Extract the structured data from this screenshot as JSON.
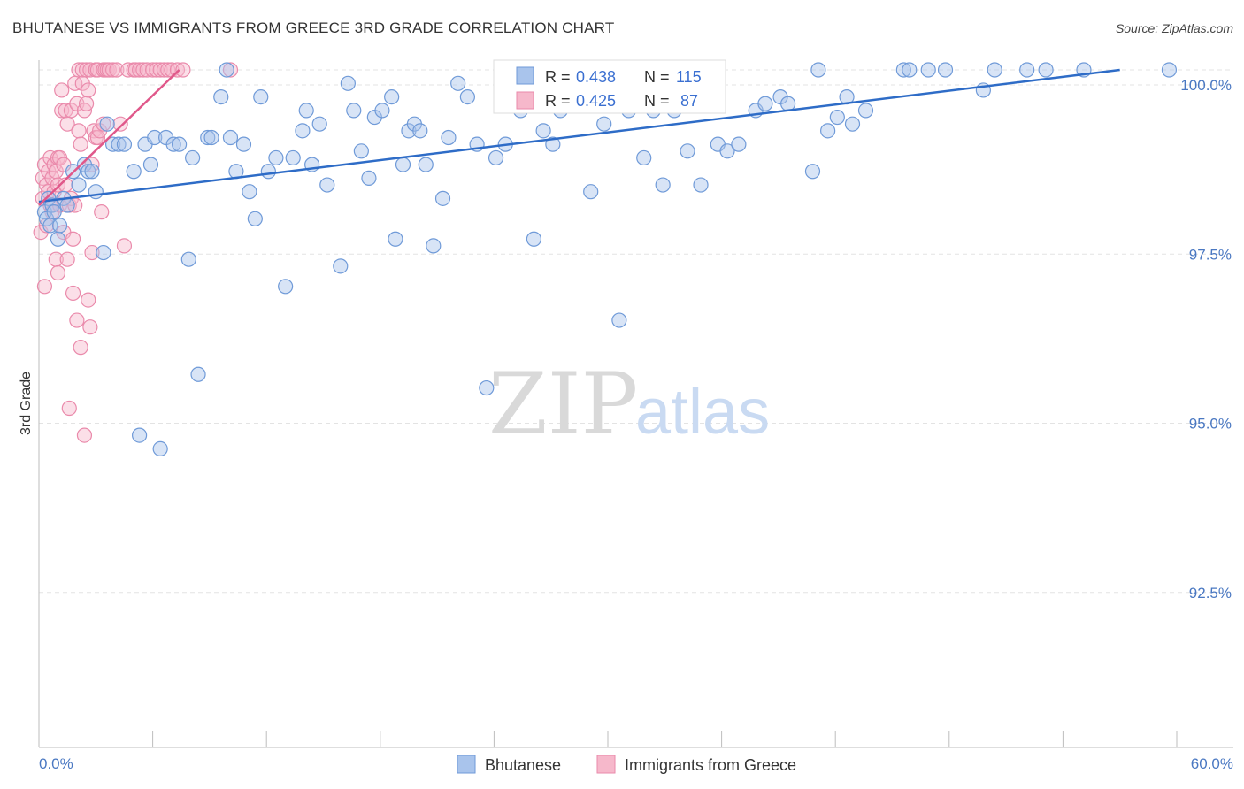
{
  "header": {
    "title": "BHUTANESE VS IMMIGRANTS FROM GREECE 3RD GRADE CORRELATION CHART",
    "source": "Source: ZipAtlas.com"
  },
  "watermark": {
    "zip": "ZIP",
    "atlas": "atlas"
  },
  "colors": {
    "blue_fill": "#a9c4ec",
    "blue_stroke": "#6f9ad8",
    "blue_line": "#2e6cc7",
    "pink_fill": "#f6b8cb",
    "pink_stroke": "#ea8aab",
    "pink_line": "#e0588a",
    "tick_text": "#4a78c2",
    "grid": "#e3e3e3"
  },
  "legend_top": {
    "rows": [
      {
        "r_label": "R = ",
        "r_value": "0.438",
        "n_label": "N = ",
        "n_value": "115"
      },
      {
        "r_label": "R = ",
        "r_value": "0.425",
        "n_label": "N = ",
        "n_value": " 87"
      }
    ]
  },
  "legend_bottom": {
    "items": [
      "Bhutanese",
      "Immigrants from Greece"
    ]
  },
  "chart_data": {
    "type": "scatter",
    "title": "BHUTANESE VS IMMIGRANTS FROM GREECE 3RD GRADE CORRELATION CHART",
    "xlabel": "",
    "ylabel": "3rd Grade",
    "xlim": [
      0,
      60
    ],
    "ylim": [
      90.0,
      100.2
    ],
    "x_tick_labels": [
      "0.0%",
      "60.0%"
    ],
    "y_ticks": [
      92.5,
      95.0,
      97.5,
      100.0
    ],
    "y_tick_labels": [
      "92.5%",
      "95.0%",
      "97.5%",
      "100.0%"
    ],
    "grid": true,
    "series": [
      {
        "name": "Bhutanese",
        "R": 0.438,
        "N": 115,
        "trend": {
          "x": [
            0.0,
            57.0
          ],
          "y": [
            98.05,
            100.0
          ]
        },
        "points": [
          [
            0.3,
            97.9
          ],
          [
            0.4,
            97.8
          ],
          [
            0.5,
            98.1
          ],
          [
            0.6,
            97.7
          ],
          [
            0.7,
            98.0
          ],
          [
            0.8,
            97.9
          ],
          [
            1.0,
            97.5
          ],
          [
            1.1,
            97.7
          ],
          [
            1.3,
            98.1
          ],
          [
            1.5,
            98.0
          ],
          [
            1.8,
            98.5
          ],
          [
            2.1,
            98.3
          ],
          [
            2.4,
            98.6
          ],
          [
            2.6,
            98.5
          ],
          [
            2.8,
            98.5
          ],
          [
            3.0,
            98.2
          ],
          [
            3.4,
            97.3
          ],
          [
            3.6,
            99.2
          ],
          [
            3.9,
            98.9
          ],
          [
            4.2,
            98.9
          ],
          [
            4.5,
            98.9
          ],
          [
            5.0,
            98.5
          ],
          [
            5.3,
            94.6
          ],
          [
            5.6,
            98.9
          ],
          [
            5.9,
            98.6
          ],
          [
            6.1,
            99.0
          ],
          [
            6.4,
            94.4
          ],
          [
            6.7,
            99.0
          ],
          [
            7.1,
            98.9
          ],
          [
            7.4,
            98.9
          ],
          [
            7.9,
            97.2
          ],
          [
            8.1,
            98.7
          ],
          [
            8.4,
            95.5
          ],
          [
            8.9,
            99.0
          ],
          [
            9.1,
            99.0
          ],
          [
            9.6,
            99.6
          ],
          [
            9.9,
            100.0
          ],
          [
            10.1,
            99.0
          ],
          [
            10.4,
            98.5
          ],
          [
            10.8,
            98.9
          ],
          [
            11.1,
            98.2
          ],
          [
            11.4,
            97.8
          ],
          [
            11.7,
            99.6
          ],
          [
            12.1,
            98.5
          ],
          [
            12.5,
            98.7
          ],
          [
            13.0,
            96.8
          ],
          [
            13.4,
            98.7
          ],
          [
            13.9,
            99.1
          ],
          [
            14.1,
            99.4
          ],
          [
            14.4,
            98.6
          ],
          [
            14.8,
            99.2
          ],
          [
            15.2,
            98.3
          ],
          [
            15.9,
            97.1
          ],
          [
            16.3,
            99.8
          ],
          [
            16.6,
            99.4
          ],
          [
            17.0,
            98.8
          ],
          [
            17.4,
            98.4
          ],
          [
            17.7,
            99.3
          ],
          [
            18.1,
            99.4
          ],
          [
            18.6,
            99.6
          ],
          [
            18.8,
            97.5
          ],
          [
            19.2,
            98.6
          ],
          [
            19.5,
            99.1
          ],
          [
            19.8,
            99.2
          ],
          [
            20.1,
            99.1
          ],
          [
            20.4,
            98.6
          ],
          [
            20.8,
            97.4
          ],
          [
            21.3,
            98.1
          ],
          [
            21.6,
            99.0
          ],
          [
            22.1,
            99.8
          ],
          [
            22.6,
            99.6
          ],
          [
            23.1,
            98.9
          ],
          [
            23.6,
            95.3
          ],
          [
            24.1,
            98.7
          ],
          [
            24.6,
            98.9
          ],
          [
            25.4,
            99.4
          ],
          [
            26.1,
            97.5
          ],
          [
            26.6,
            99.1
          ],
          [
            27.1,
            98.9
          ],
          [
            27.5,
            99.4
          ],
          [
            28.6,
            100.0
          ],
          [
            29.1,
            98.2
          ],
          [
            29.8,
            99.2
          ],
          [
            30.6,
            96.3
          ],
          [
            31.1,
            99.4
          ],
          [
            31.9,
            98.7
          ],
          [
            32.4,
            99.4
          ],
          [
            32.9,
            98.3
          ],
          [
            33.5,
            99.4
          ],
          [
            34.2,
            98.8
          ],
          [
            34.9,
            98.3
          ],
          [
            35.8,
            98.9
          ],
          [
            36.3,
            98.8
          ],
          [
            36.9,
            98.9
          ],
          [
            37.8,
            99.4
          ],
          [
            38.3,
            99.5
          ],
          [
            39.1,
            99.6
          ],
          [
            39.5,
            99.5
          ],
          [
            40.8,
            98.5
          ],
          [
            41.1,
            100.0
          ],
          [
            41.6,
            99.1
          ],
          [
            42.1,
            99.3
          ],
          [
            42.6,
            99.6
          ],
          [
            42.9,
            99.2
          ],
          [
            43.6,
            99.4
          ],
          [
            45.6,
            100.0
          ],
          [
            45.9,
            100.0
          ],
          [
            46.9,
            100.0
          ],
          [
            47.8,
            100.0
          ],
          [
            49.8,
            99.7
          ],
          [
            50.4,
            100.0
          ],
          [
            52.1,
            100.0
          ],
          [
            53.1,
            100.0
          ],
          [
            55.1,
            100.0
          ],
          [
            59.6,
            100.0
          ]
        ]
      },
      {
        "name": "Immigrants from Greece",
        "R": 0.425,
        "N": 87,
        "trend": {
          "x": [
            0.0,
            7.4
          ],
          "y": [
            98.0,
            100.0
          ]
        },
        "points": [
          [
            0.1,
            97.6
          ],
          [
            0.2,
            98.1
          ],
          [
            0.2,
            98.4
          ],
          [
            0.3,
            98.6
          ],
          [
            0.3,
            96.8
          ],
          [
            0.4,
            98.3
          ],
          [
            0.4,
            97.7
          ],
          [
            0.5,
            98.5
          ],
          [
            0.5,
            98.2
          ],
          [
            0.6,
            98.0
          ],
          [
            0.6,
            98.7
          ],
          [
            0.7,
            98.4
          ],
          [
            0.7,
            97.9
          ],
          [
            0.8,
            98.6
          ],
          [
            0.8,
            98.2
          ],
          [
            0.9,
            98.5
          ],
          [
            0.9,
            97.2
          ],
          [
            1.0,
            98.7
          ],
          [
            1.0,
            98.3
          ],
          [
            1.0,
            97.0
          ],
          [
            1.1,
            98.7
          ],
          [
            1.1,
            98.0
          ],
          [
            1.2,
            99.7
          ],
          [
            1.2,
            99.4
          ],
          [
            1.3,
            98.6
          ],
          [
            1.3,
            97.6
          ],
          [
            1.4,
            99.4
          ],
          [
            1.4,
            98.3
          ],
          [
            1.5,
            99.2
          ],
          [
            1.5,
            97.2
          ],
          [
            1.6,
            98.0
          ],
          [
            1.6,
            95.0
          ],
          [
            1.7,
            99.4
          ],
          [
            1.7,
            98.1
          ],
          [
            1.8,
            97.5
          ],
          [
            1.8,
            96.7
          ],
          [
            1.9,
            99.8
          ],
          [
            1.9,
            98.0
          ],
          [
            2.0,
            99.5
          ],
          [
            2.0,
            96.3
          ],
          [
            2.1,
            99.1
          ],
          [
            2.1,
            100.0
          ],
          [
            2.2,
            98.9
          ],
          [
            2.2,
            95.9
          ],
          [
            2.3,
            99.8
          ],
          [
            2.3,
            100.0
          ],
          [
            2.4,
            99.4
          ],
          [
            2.4,
            94.6
          ],
          [
            2.5,
            99.5
          ],
          [
            2.5,
            100.0
          ],
          [
            2.6,
            99.7
          ],
          [
            2.6,
            96.6
          ],
          [
            2.7,
            100.0
          ],
          [
            2.7,
            96.2
          ],
          [
            2.8,
            98.6
          ],
          [
            2.8,
            97.3
          ],
          [
            2.9,
            99.1
          ],
          [
            3.0,
            100.0
          ],
          [
            3.0,
            99.0
          ],
          [
            3.1,
            99.0
          ],
          [
            3.1,
            100.0
          ],
          [
            3.2,
            99.1
          ],
          [
            3.3,
            97.9
          ],
          [
            3.4,
            100.0
          ],
          [
            3.4,
            99.2
          ],
          [
            3.5,
            100.0
          ],
          [
            3.6,
            100.0
          ],
          [
            3.7,
            100.0
          ],
          [
            3.9,
            100.0
          ],
          [
            4.1,
            100.0
          ],
          [
            4.3,
            99.2
          ],
          [
            4.5,
            97.4
          ],
          [
            4.7,
            100.0
          ],
          [
            5.0,
            100.0
          ],
          [
            5.1,
            100.0
          ],
          [
            5.3,
            100.0
          ],
          [
            5.5,
            100.0
          ],
          [
            5.7,
            100.0
          ],
          [
            6.0,
            100.0
          ],
          [
            6.2,
            100.0
          ],
          [
            6.4,
            100.0
          ],
          [
            6.6,
            100.0
          ],
          [
            6.8,
            100.0
          ],
          [
            7.0,
            100.0
          ],
          [
            7.3,
            100.0
          ],
          [
            7.6,
            100.0
          ],
          [
            10.1,
            100.0
          ]
        ]
      }
    ]
  }
}
